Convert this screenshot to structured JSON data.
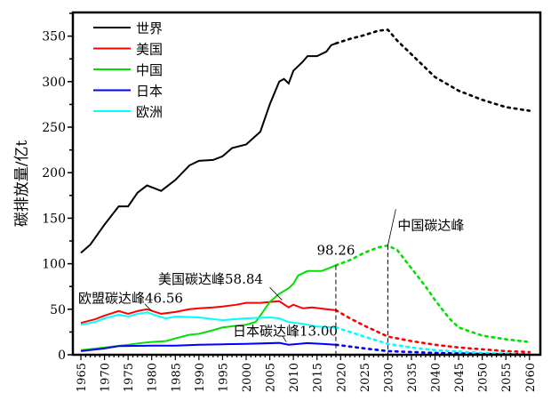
{
  "chart_data": {
    "type": "line",
    "ylabel": "碳排放量/亿t",
    "xlim": [
      1963.3,
      2062.3
    ],
    "ylim": [
      0,
      376
    ],
    "yticks": [
      0,
      50,
      100,
      150,
      200,
      250,
      300,
      350
    ],
    "xticks": [
      1965,
      1970,
      1975,
      1980,
      1985,
      1990,
      1995,
      2000,
      2005,
      2010,
      2015,
      2020,
      2025,
      2030,
      2035,
      2040,
      2045,
      2050,
      2055,
      2060
    ],
    "legend_position": "top-left",
    "series": [
      {
        "name": "世界",
        "color": "#000000",
        "actual": [
          [
            1965,
            112
          ],
          [
            1967,
            121
          ],
          [
            1970,
            143
          ],
          [
            1973,
            163
          ],
          [
            1975,
            163
          ],
          [
            1977,
            178
          ],
          [
            1979,
            186
          ],
          [
            1982,
            180
          ],
          [
            1985,
            192
          ],
          [
            1988,
            208
          ],
          [
            1990,
            213
          ],
          [
            1993,
            214
          ],
          [
            1995,
            218
          ],
          [
            1997,
            227
          ],
          [
            2000,
            231
          ],
          [
            2003,
            245
          ],
          [
            2005,
            275
          ],
          [
            2007,
            300
          ],
          [
            2008,
            303
          ],
          [
            2009,
            298
          ],
          [
            2010,
            312
          ],
          [
            2012,
            322
          ],
          [
            2013,
            328
          ],
          [
            2015,
            328
          ],
          [
            2017,
            333
          ],
          [
            2018,
            340
          ],
          [
            2019,
            342
          ]
        ],
        "projected": [
          [
            2019,
            342
          ],
          [
            2022,
            347
          ],
          [
            2025,
            351
          ],
          [
            2028,
            356
          ],
          [
            2030,
            357
          ],
          [
            2032,
            345
          ],
          [
            2035,
            330
          ],
          [
            2040,
            305
          ],
          [
            2045,
            290
          ],
          [
            2050,
            280
          ],
          [
            2055,
            272
          ],
          [
            2060,
            268
          ]
        ]
      },
      {
        "name": "美国",
        "color": "#ff0000",
        "actual": [
          [
            1965,
            35
          ],
          [
            1968,
            39
          ],
          [
            1970,
            43
          ],
          [
            1973,
            48
          ],
          [
            1975,
            45
          ],
          [
            1977,
            48
          ],
          [
            1979,
            50
          ],
          [
            1982,
            45
          ],
          [
            1985,
            47
          ],
          [
            1988,
            50
          ],
          [
            1990,
            51
          ],
          [
            1993,
            52
          ],
          [
            1995,
            53
          ],
          [
            1998,
            55
          ],
          [
            2000,
            57
          ],
          [
            2003,
            57
          ],
          [
            2005,
            58
          ],
          [
            2007,
            58.84
          ],
          [
            2009,
            52
          ],
          [
            2010,
            55
          ],
          [
            2012,
            51
          ],
          [
            2014,
            52
          ],
          [
            2017,
            50
          ],
          [
            2019,
            49
          ]
        ],
        "projected": [
          [
            2019,
            49
          ],
          [
            2022,
            40
          ],
          [
            2025,
            32
          ],
          [
            2030,
            20
          ],
          [
            2035,
            15
          ],
          [
            2040,
            11
          ],
          [
            2045,
            8
          ],
          [
            2050,
            6
          ],
          [
            2055,
            4
          ],
          [
            2060,
            3
          ]
        ]
      },
      {
        "name": "中国",
        "color": "#00e000",
        "actual": [
          [
            1965,
            5
          ],
          [
            1970,
            8
          ],
          [
            1975,
            11
          ],
          [
            1978,
            13
          ],
          [
            1980,
            14
          ],
          [
            1983,
            15
          ],
          [
            1985,
            18
          ],
          [
            1988,
            22
          ],
          [
            1990,
            23
          ],
          [
            1993,
            27
          ],
          [
            1995,
            30
          ],
          [
            1998,
            32
          ],
          [
            2000,
            33
          ],
          [
            2002,
            36
          ],
          [
            2003,
            43
          ],
          [
            2005,
            58
          ],
          [
            2007,
            67
          ],
          [
            2009,
            73
          ],
          [
            2010,
            78
          ],
          [
            2011,
            87
          ],
          [
            2013,
            92
          ],
          [
            2016,
            92
          ],
          [
            2019,
            98.26
          ]
        ],
        "projected": [
          [
            2019,
            98.26
          ],
          [
            2022,
            104
          ],
          [
            2025,
            112
          ],
          [
            2028,
            118
          ],
          [
            2030,
            120
          ],
          [
            2032,
            115
          ],
          [
            2035,
            95
          ],
          [
            2038,
            75
          ],
          [
            2040,
            60
          ],
          [
            2043,
            40
          ],
          [
            2045,
            30
          ],
          [
            2050,
            21
          ],
          [
            2055,
            17
          ],
          [
            2060,
            14
          ]
        ]
      },
      {
        "name": "日本",
        "color": "#0000ff",
        "actual": [
          [
            1965,
            4
          ],
          [
            1970,
            7
          ],
          [
            1973,
            9.5
          ],
          [
            1980,
            10
          ],
          [
            1985,
            10
          ],
          [
            1990,
            11
          ],
          [
            1995,
            11.5
          ],
          [
            2000,
            12
          ],
          [
            2007,
            13.0
          ],
          [
            2009,
            11
          ],
          [
            2013,
            12.8
          ],
          [
            2016,
            12
          ],
          [
            2019,
            11
          ]
        ],
        "projected": [
          [
            2019,
            11
          ],
          [
            2025,
            7
          ],
          [
            2030,
            4
          ],
          [
            2040,
            2
          ],
          [
            2050,
            1
          ],
          [
            2060,
            0.5
          ]
        ]
      },
      {
        "name": "欧洲",
        "color": "#00ffff",
        "actual": [
          [
            1965,
            33
          ],
          [
            1968,
            36
          ],
          [
            1970,
            40
          ],
          [
            1973,
            44
          ],
          [
            1975,
            42
          ],
          [
            1977,
            45
          ],
          [
            1979,
            46.56
          ],
          [
            1981,
            43
          ],
          [
            1983,
            40
          ],
          [
            1985,
            42
          ],
          [
            1990,
            41
          ],
          [
            1995,
            38
          ],
          [
            2000,
            40
          ],
          [
            2005,
            41
          ],
          [
            2007,
            40
          ],
          [
            2009,
            36
          ],
          [
            2012,
            34
          ],
          [
            2015,
            31
          ],
          [
            2019,
            30
          ]
        ],
        "projected": [
          [
            2019,
            30
          ],
          [
            2025,
            20
          ],
          [
            2030,
            12
          ],
          [
            2035,
            8
          ],
          [
            2040,
            5
          ],
          [
            2050,
            2
          ],
          [
            2060,
            0.5
          ]
        ]
      }
    ],
    "annotations": [
      {
        "text": "98.26",
        "x": 2019,
        "y": 98.26
      },
      {
        "text": "中国碳达峰",
        "x": 2030,
        "y": 120
      },
      {
        "text": "美国碳达峰58.84",
        "x": 2007,
        "y": 58.84
      },
      {
        "text": "欧盟碳达峰46.56",
        "x": 1979,
        "y": 46.56
      },
      {
        "text": "日本碳达峰13.00",
        "x": 2007,
        "y": 13.0
      }
    ]
  }
}
